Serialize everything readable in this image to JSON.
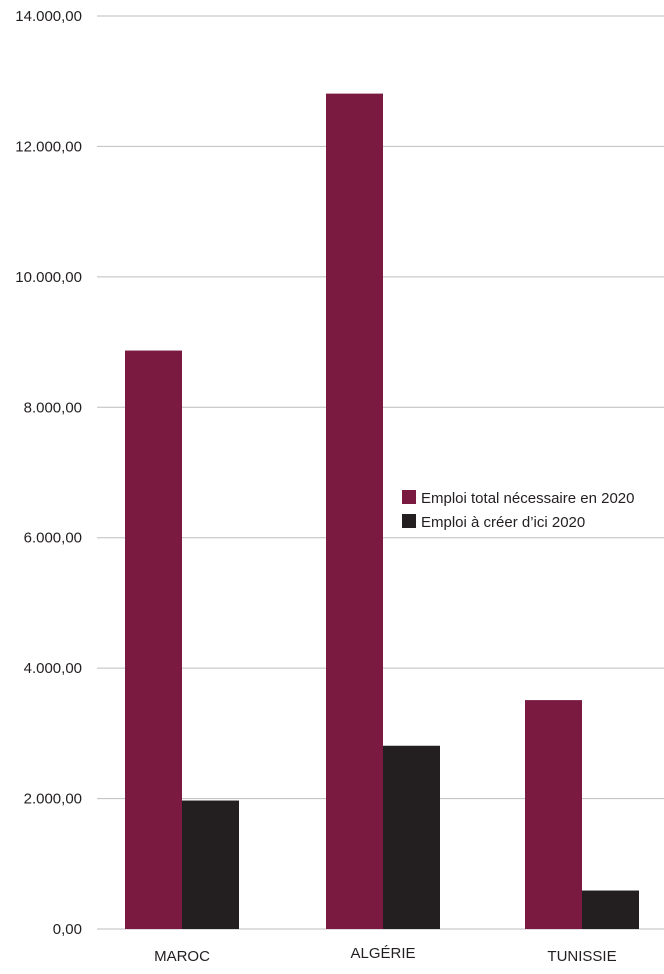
{
  "chart_data": {
    "type": "bar",
    "categories": [
      "MAROC",
      "ALGÉRIE",
      "TUNISSIE"
    ],
    "series": [
      {
        "name": "Emploi total nécessaire en 2020",
        "color": "#7a1a41",
        "values": [
          8870,
          12810,
          3510
        ]
      },
      {
        "name": "Emploi à créer d’ici 2020",
        "color": "#231f20",
        "values": [
          1970,
          2810,
          590
        ]
      }
    ],
    "ylim": [
      0,
      14000
    ],
    "yticks": [
      {
        "value": 0,
        "label": "0,00"
      },
      {
        "value": 2000,
        "label": "2.000,00"
      },
      {
        "value": 4000,
        "label": "4.000,00"
      },
      {
        "value": 6000,
        "label": "6.000,00"
      },
      {
        "value": 8000,
        "label": "8.000,00"
      },
      {
        "value": 10000,
        "label": "10.000,00"
      },
      {
        "value": 12000,
        "label": "12.000,00"
      },
      {
        "value": 14000,
        "label": "14.000,00"
      }
    ],
    "grid": true,
    "gridColor": "#bcbec0",
    "legend_position": "right"
  }
}
